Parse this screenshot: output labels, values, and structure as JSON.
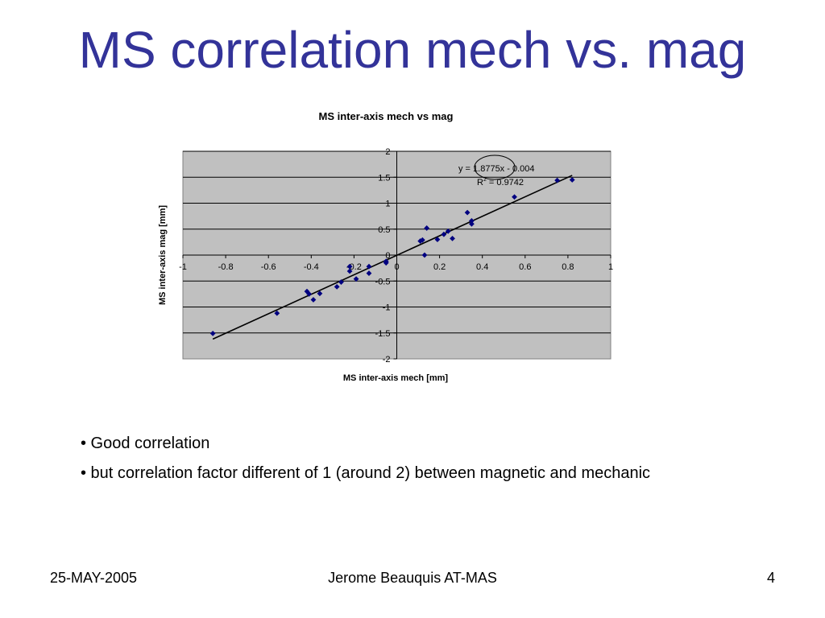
{
  "slide": {
    "title": "MS correlation mech vs. mag",
    "bullets": [
      "• Good correlation",
      "• but correlation factor different of 1 (around 2) between magnetic and mechanic"
    ],
    "footer": {
      "date": "25-MAY-2005",
      "author": "Jerome Beauquis AT-MAS",
      "page": "4"
    }
  },
  "colors": {
    "title": "#333399",
    "plot_background": "#c0c0c0",
    "marker": "#000080",
    "trendline": "#000000",
    "gridline": "#000000"
  },
  "chart_data": {
    "type": "scatter",
    "title": "MS inter-axis mech vs mag",
    "xlabel": "MS inter-axis mech [mm]",
    "ylabel": "MS inter-axis mag [mm]",
    "xlim": [
      -1,
      1
    ],
    "ylim": [
      -2,
      2
    ],
    "x_ticks": [
      -1,
      -0.8,
      -0.6,
      -0.4,
      -0.2,
      0,
      0.2,
      0.4,
      0.6,
      0.8,
      1
    ],
    "x_tick_labels": [
      "-1",
      "-0.8",
      "-0.6",
      "-0.4",
      "-0.2",
      "0",
      "0.2",
      "0.4",
      "0.6",
      "0.8",
      "1"
    ],
    "y_ticks": [
      -2,
      -1.5,
      -1,
      -0.5,
      0,
      0.5,
      1,
      1.5,
      2
    ],
    "y_tick_labels": [
      "-2",
      "-1.5",
      "-1",
      "-0.5",
      "0",
      "0.5",
      "1",
      "1.5",
      "2"
    ],
    "grid": "horizontal",
    "legend": "none",
    "points": [
      {
        "x": -0.86,
        "y": -1.51
      },
      {
        "x": -0.56,
        "y": -1.12
      },
      {
        "x": -0.42,
        "y": -0.7
      },
      {
        "x": -0.41,
        "y": -0.75
      },
      {
        "x": -0.39,
        "y": -0.86
      },
      {
        "x": -0.36,
        "y": -0.74
      },
      {
        "x": -0.28,
        "y": -0.61
      },
      {
        "x": -0.26,
        "y": -0.52
      },
      {
        "x": -0.22,
        "y": -0.22
      },
      {
        "x": -0.22,
        "y": -0.31
      },
      {
        "x": -0.19,
        "y": -0.46
      },
      {
        "x": -0.13,
        "y": -0.35
      },
      {
        "x": -0.13,
        "y": -0.22
      },
      {
        "x": -0.05,
        "y": -0.12
      },
      {
        "x": -0.05,
        "y": -0.15
      },
      {
        "x": 0.11,
        "y": 0.27
      },
      {
        "x": 0.12,
        "y": 0.29
      },
      {
        "x": 0.13,
        "y": 0.0
      },
      {
        "x": 0.14,
        "y": 0.52
      },
      {
        "x": 0.19,
        "y": 0.3
      },
      {
        "x": 0.22,
        "y": 0.4
      },
      {
        "x": 0.24,
        "y": 0.46
      },
      {
        "x": 0.26,
        "y": 0.32
      },
      {
        "x": 0.33,
        "y": 0.82
      },
      {
        "x": 0.35,
        "y": 0.66
      },
      {
        "x": 0.35,
        "y": 0.6
      },
      {
        "x": 0.55,
        "y": 1.12
      },
      {
        "x": 0.75,
        "y": 1.44
      },
      {
        "x": 0.82,
        "y": 1.45
      }
    ],
    "trendline": {
      "slope": 1.8775,
      "intercept": -0.004,
      "x_range": [
        -0.86,
        0.82
      ],
      "equation_label": "y = 1.8775x - 0.004",
      "r2_label": "R",
      "r2_superscript": "2",
      "r2_value_label": " = 0.9742",
      "annotation": "circled slope value"
    }
  }
}
